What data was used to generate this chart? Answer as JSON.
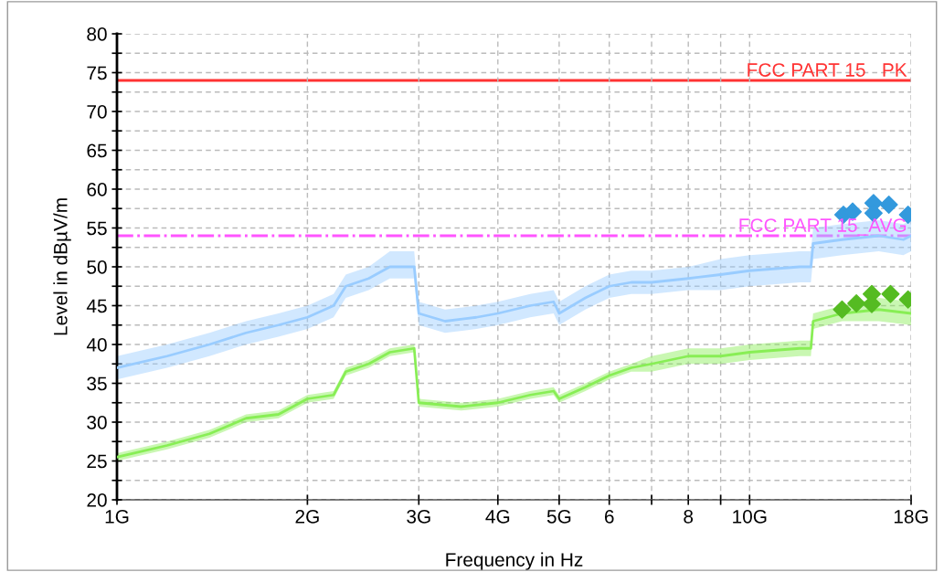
{
  "chart_data": {
    "type": "line",
    "xlabel": "Frequency in Hz",
    "ylabel": "Level in dBµV/m",
    "log": "x",
    "grid": true,
    "legend": false,
    "xlim": [
      1,
      18
    ],
    "ylim": [
      20,
      80
    ],
    "xticks": [
      {
        "value": 1,
        "label": "1G"
      },
      {
        "value": 2,
        "label": "2G"
      },
      {
        "value": 3,
        "label": "3G"
      },
      {
        "value": 4,
        "label": "4G"
      },
      {
        "value": 5,
        "label": "5G"
      },
      6,
      {
        "value": 7,
        "label": null
      },
      8,
      {
        "value": 9,
        "label": null
      },
      {
        "value": 10,
        "label": "10G"
      },
      {
        "value": 18,
        "label": "18G"
      }
    ],
    "yticks": [
      20,
      {
        "value": 22.5,
        "label": null
      },
      25,
      {
        "value": 27.5,
        "label": null
      },
      30,
      {
        "value": 32.5,
        "label": null
      },
      35,
      {
        "value": 37.5,
        "label": null
      },
      40,
      {
        "value": 42.5,
        "label": null
      },
      45,
      {
        "value": 47.5,
        "label": null
      },
      50,
      {
        "value": 52.5,
        "label": null
      },
      55,
      {
        "value": 57.5,
        "label": null
      },
      60,
      {
        "value": 62.5,
        "label": null
      },
      65,
      {
        "value": 67.5,
        "label": null
      },
      70,
      {
        "value": 72.5,
        "label": null
      },
      75,
      {
        "value": 77.5,
        "label": null
      },
      80
    ],
    "ref_lines": [
      {
        "axis": "y",
        "value": 74,
        "label": "FCC PART 15   PK",
        "color": "#ff3333",
        "line_style": "solid"
      },
      {
        "axis": "y",
        "value": 54,
        "label": "FCC PART 15_AVG",
        "color": "#ff55ff",
        "line_style": "dashdot"
      }
    ],
    "series": [
      {
        "color": "#99ccff",
        "marker": "none",
        "x": [
          1,
          1.2,
          1.4,
          1.6,
          1.8,
          2,
          2.2,
          2.3,
          2.5,
          2.7,
          2.95,
          3,
          3.3,
          3.7,
          4,
          4.5,
          4.9,
          5,
          5.5,
          6,
          6.5,
          7,
          8,
          9,
          10,
          12,
          12.5,
          12.6,
          14,
          16,
          17.5,
          18
        ],
        "values": [
          37,
          38.5,
          40,
          41.5,
          42.5,
          43.5,
          45,
          47.5,
          48.5,
          50,
          50,
          44,
          43,
          43.5,
          44,
          45,
          45.5,
          44,
          46,
          47.5,
          48,
          48,
          48.5,
          49,
          49.5,
          50,
          50,
          53,
          53.5,
          54,
          53.5,
          54
        ],
        "lower": [
          35.5,
          37,
          38.5,
          40,
          41,
          42,
          43.5,
          46,
          47,
          48.5,
          48.5,
          42.5,
          41.5,
          42,
          42.5,
          43.5,
          44,
          42.5,
          44.5,
          46,
          46.5,
          46.5,
          47,
          47,
          47.5,
          48,
          48,
          51,
          51.5,
          52,
          51.5,
          52
        ],
        "upper": [
          38.5,
          40,
          41.5,
          43,
          44,
          45,
          46.5,
          49,
          50,
          52,
          52,
          45.5,
          44.5,
          45,
          45.5,
          46.5,
          47,
          45.5,
          47.5,
          49,
          49.5,
          49.5,
          50,
          51,
          51.5,
          52,
          52,
          55,
          55.5,
          56,
          55.5,
          56
        ]
      },
      {
        "color": "#88ee55",
        "marker": "none",
        "x": [
          1,
          1.2,
          1.4,
          1.6,
          1.8,
          2,
          2.2,
          2.3,
          2.5,
          2.7,
          2.95,
          3,
          3.5,
          4,
          4.5,
          4.9,
          5,
          5.5,
          6,
          6.5,
          7,
          8,
          9,
          10,
          12,
          12.5,
          12.6,
          14,
          16,
          18
        ],
        "values": [
          25.5,
          27,
          28.5,
          30.5,
          31,
          33,
          33.5,
          36.5,
          37.5,
          39,
          39.5,
          32.5,
          32,
          32.5,
          33.5,
          34,
          33,
          34.5,
          36,
          37,
          37.5,
          38.5,
          38.5,
          39,
          39.5,
          39.5,
          43,
          44,
          44.5,
          44
        ],
        "lower": [
          25,
          26.5,
          28,
          30,
          30.5,
          32.5,
          33,
          36,
          37,
          38.5,
          39,
          32,
          31.5,
          32,
          33,
          33.5,
          32.5,
          34,
          35.5,
          36.5,
          36.5,
          37.5,
          37.5,
          38,
          38.5,
          38.5,
          42,
          43,
          43,
          42.5
        ],
        "upper": [
          26,
          27.5,
          29,
          31,
          31.5,
          33.5,
          34,
          37,
          38,
          39.5,
          40,
          33,
          32.5,
          33,
          34,
          34.5,
          33.5,
          35,
          36.5,
          37.5,
          38.5,
          39.5,
          39.5,
          40,
          40.5,
          40.5,
          44,
          45,
          46,
          45.5
        ]
      },
      {
        "type": "scatter",
        "color": "#3399dd",
        "marker": "diamond",
        "x": [
          14.07,
          14.55,
          15.7,
          15.7,
          16.6,
          17.8
        ],
        "values": [
          56.7,
          57.1,
          58.2,
          56.9,
          58.0,
          56.7
        ]
      },
      {
        "type": "scatter",
        "color": "#55bb22",
        "marker": "diamond",
        "x": [
          14.0,
          14.75,
          15.6,
          15.6,
          16.7,
          17.8
        ],
        "values": [
          44.5,
          45.3,
          46.5,
          45.2,
          46.5,
          45.8
        ]
      }
    ]
  }
}
